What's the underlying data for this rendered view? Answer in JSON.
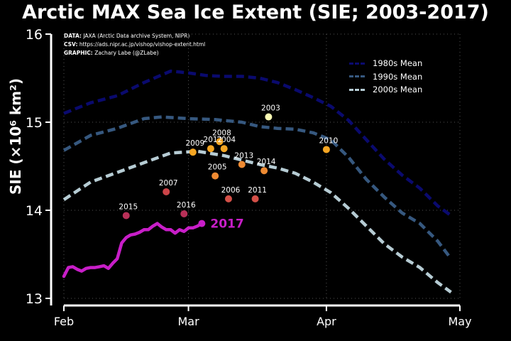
{
  "chart_data": {
    "type": "line",
    "title": "Arctic MAX Sea Ice Extent (SIE; 2003-2017)",
    "ylabel": "SIE (×10⁶ km²)",
    "ylim": [
      13,
      16
    ],
    "xlim": [
      0,
      89
    ],
    "y_ticks": [
      "13",
      "14",
      "15",
      "16"
    ],
    "x_ticks": [
      {
        "label": "Feb",
        "day": 0
      },
      {
        "label": "Mar",
        "day": 28
      },
      {
        "label": "Apr",
        "day": 59
      },
      {
        "label": "May",
        "day": 89
      }
    ],
    "grid": true,
    "legend_position": "top-right",
    "series": [
      {
        "name": "1980s Mean",
        "color": "#0a0a6e",
        "style": "dashed",
        "points": [
          [
            0,
            15.1
          ],
          [
            6,
            15.22
          ],
          [
            12,
            15.3
          ],
          [
            18,
            15.45
          ],
          [
            24,
            15.58
          ],
          [
            28,
            15.56
          ],
          [
            32,
            15.53
          ],
          [
            36,
            15.52
          ],
          [
            40,
            15.52
          ],
          [
            44,
            15.5
          ],
          [
            48,
            15.45
          ],
          [
            52,
            15.37
          ],
          [
            56,
            15.28
          ],
          [
            60,
            15.18
          ],
          [
            64,
            15.02
          ],
          [
            68,
            14.8
          ],
          [
            72,
            14.58
          ],
          [
            76,
            14.4
          ],
          [
            80,
            14.25
          ],
          [
            84,
            14.05
          ],
          [
            87,
            13.94
          ]
        ]
      },
      {
        "name": "1990s Mean",
        "color": "#36587f",
        "style": "dashed",
        "points": [
          [
            0,
            14.68
          ],
          [
            6,
            14.85
          ],
          [
            12,
            14.93
          ],
          [
            18,
            15.04
          ],
          [
            22,
            15.06
          ],
          [
            28,
            15.04
          ],
          [
            34,
            15.03
          ],
          [
            40,
            15.0
          ],
          [
            44,
            14.95
          ],
          [
            48,
            14.93
          ],
          [
            52,
            14.92
          ],
          [
            56,
            14.88
          ],
          [
            60,
            14.8
          ],
          [
            64,
            14.6
          ],
          [
            68,
            14.35
          ],
          [
            72,
            14.15
          ],
          [
            76,
            13.97
          ],
          [
            80,
            13.85
          ],
          [
            84,
            13.65
          ],
          [
            87,
            13.45
          ]
        ]
      },
      {
        "name": "2000s Mean",
        "color": "#b6ccd4",
        "style": "dashed",
        "points": [
          [
            0,
            14.12
          ],
          [
            6,
            14.32
          ],
          [
            12,
            14.43
          ],
          [
            18,
            14.54
          ],
          [
            24,
            14.65
          ],
          [
            30,
            14.67
          ],
          [
            36,
            14.62
          ],
          [
            40,
            14.57
          ],
          [
            44,
            14.52
          ],
          [
            48,
            14.48
          ],
          [
            52,
            14.42
          ],
          [
            56,
            14.32
          ],
          [
            60,
            14.2
          ],
          [
            64,
            14.02
          ],
          [
            68,
            13.82
          ],
          [
            72,
            13.62
          ],
          [
            76,
            13.47
          ],
          [
            80,
            13.35
          ],
          [
            84,
            13.18
          ],
          [
            87,
            13.07
          ]
        ]
      },
      {
        "name": "2017",
        "color": "#c81ec8",
        "style": "solid",
        "label": "2017",
        "points": [
          [
            0,
            13.25
          ],
          [
            1,
            13.35
          ],
          [
            2,
            13.36
          ],
          [
            3,
            13.33
          ],
          [
            4,
            13.31
          ],
          [
            5,
            13.34
          ],
          [
            6,
            13.35
          ],
          [
            7,
            13.35
          ],
          [
            8,
            13.36
          ],
          [
            9,
            13.37
          ],
          [
            10,
            13.34
          ],
          [
            11,
            13.4
          ],
          [
            12,
            13.45
          ],
          [
            13,
            13.63
          ],
          [
            14,
            13.69
          ],
          [
            15,
            13.72
          ],
          [
            16,
            13.73
          ],
          [
            17,
            13.75
          ],
          [
            18,
            13.78
          ],
          [
            19,
            13.78
          ],
          [
            20,
            13.82
          ],
          [
            21,
            13.85
          ],
          [
            22,
            13.81
          ],
          [
            23,
            13.78
          ],
          [
            24,
            13.78
          ],
          [
            25,
            13.74
          ],
          [
            26,
            13.78
          ],
          [
            27,
            13.76
          ],
          [
            28,
            13.8
          ],
          [
            29,
            13.8
          ],
          [
            30,
            13.82
          ],
          [
            31,
            13.85
          ]
        ]
      }
    ],
    "max_points": [
      {
        "year": "2003",
        "day": 46,
        "value": 15.06,
        "color": "#fbfbb4"
      },
      {
        "year": "2004",
        "day": 36,
        "value": 14.7,
        "color": "#f5a623"
      },
      {
        "year": "2005",
        "day": 34,
        "value": 14.39,
        "color": "#ee8a32"
      },
      {
        "year": "2006",
        "day": 37,
        "value": 14.13,
        "color": "#d45048"
      },
      {
        "year": "2007",
        "day": 23,
        "value": 14.21,
        "color": "#cc4448"
      },
      {
        "year": "2008",
        "day": 35,
        "value": 14.78,
        "color": "#f5a623"
      },
      {
        "year": "2009",
        "day": 29,
        "value": 14.66,
        "color": "#f5a623"
      },
      {
        "year": "2010",
        "day": 59,
        "value": 14.69,
        "color": "#f5a623"
      },
      {
        "year": "2011",
        "day": 43,
        "value": 14.13,
        "color": "#d45048"
      },
      {
        "year": "2012",
        "day": 33,
        "value": 14.7,
        "color": "#f5a623"
      },
      {
        "year": "2013",
        "day": 40,
        "value": 14.52,
        "color": "#ee8a32"
      },
      {
        "year": "2014",
        "day": 45,
        "value": 14.45,
        "color": "#ee8a32"
      },
      {
        "year": "2015",
        "day": 14,
        "value": 13.94,
        "color": "#b83058"
      },
      {
        "year": "2016",
        "day": 27,
        "value": 13.96,
        "color": "#b83058"
      }
    ]
  },
  "credits": {
    "data_label": "DATA:",
    "data_text": "JAXA (Arctic Data archive System, NIPR)",
    "csv_label": "CSV:",
    "csv_text": "https://ads.nipr.ac.jp/vishop/vishop-extent.html",
    "graphic_label": "GRAPHIC:",
    "graphic_text": "Zachary Labe (@ZLabe)"
  },
  "colors": {
    "background": "#000000",
    "axis": "#ffffff",
    "grid": "#555555"
  }
}
